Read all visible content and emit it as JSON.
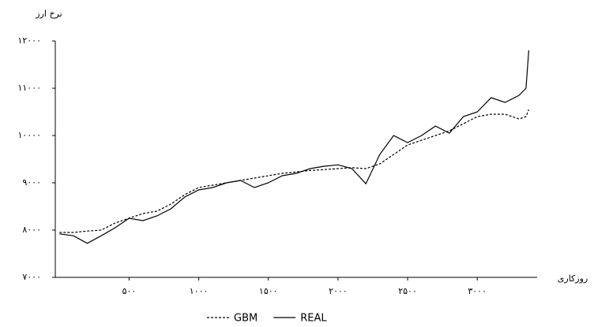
{
  "chart_data": {
    "type": "line",
    "y_label": "نرخ ارز",
    "x_label": "روزکاری",
    "x": [
      0,
      100,
      200,
      300,
      400,
      500,
      600,
      700,
      800,
      900,
      1000,
      1100,
      1200,
      1300,
      1400,
      1500,
      1600,
      1700,
      1800,
      1900,
      2000,
      2100,
      2200,
      2300,
      2400,
      2500,
      2600,
      2700,
      2800,
      2900,
      3000,
      3100,
      3200,
      3300,
      3350,
      3370
    ],
    "series": [
      {
        "name": "GBM",
        "color": "#000000",
        "dash": true,
        "values": [
          7950,
          7950,
          7980,
          8000,
          8150,
          8250,
          8350,
          8400,
          8550,
          8750,
          8900,
          8950,
          9000,
          9050,
          9100,
          9150,
          9200,
          9230,
          9260,
          9280,
          9300,
          9320,
          9300,
          9400,
          9600,
          9800,
          9900,
          10000,
          10100,
          10250,
          10400,
          10450,
          10450,
          10350,
          10400,
          10550
        ]
      },
      {
        "name": "REAL",
        "color": "#000000",
        "dash": false,
        "values": [
          7920,
          7880,
          7720,
          7880,
          8050,
          8250,
          8200,
          8300,
          8450,
          8700,
          8850,
          8900,
          9000,
          9050,
          8900,
          9000,
          9150,
          9200,
          9300,
          9350,
          9380,
          9300,
          8980,
          9600,
          10000,
          9850,
          10000,
          10200,
          10050,
          10400,
          10500,
          10800,
          10700,
          10850,
          11000,
          11800
        ]
      }
    ],
    "xlim": [
      -30,
      3430
    ],
    "ylim": [
      7000,
      12000
    ],
    "xticks": [
      {
        "value": 500,
        "label": "۵۰۰"
      },
      {
        "value": 1000,
        "label": "۱۰۰۰"
      },
      {
        "value": 1500,
        "label": "۱۵۰۰"
      },
      {
        "value": 2000,
        "label": "۲۰۰۰"
      },
      {
        "value": 2500,
        "label": "۲۵۰۰"
      },
      {
        "value": 3000,
        "label": "۳۰۰۰"
      }
    ],
    "yticks": [
      {
        "value": 7000,
        "label": "۷۰۰۰"
      },
      {
        "value": 8000,
        "label": "۸۰۰۰"
      },
      {
        "value": 9000,
        "label": "۹۰۰۰"
      },
      {
        "value": 10000,
        "label": "۱۰۰۰۰"
      },
      {
        "value": 11000,
        "label": "۱۱۰۰۰"
      },
      {
        "value": 12000,
        "label": "۱۲۰۰۰"
      }
    ]
  }
}
